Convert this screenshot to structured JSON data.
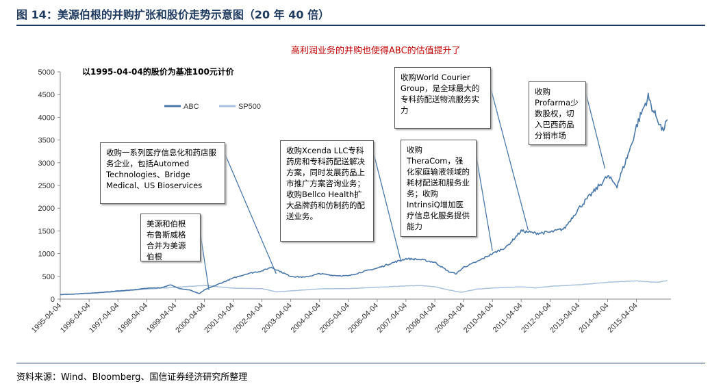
{
  "header": {
    "figure_title": "图 14：美源伯根的并购扩张和股价走势示意图（20 年 40 倍）",
    "subtitle": "高利润业务的并购也使得ABC的估值提升了",
    "source": "资料来源：Wind、Bloomberg、国信证券经济研究所整理"
  },
  "chart_data": {
    "type": "line",
    "note": "以1995-04-04的股价为基准100元计价",
    "x_labels": [
      "1995-04-04",
      "1996-04-04",
      "1997-04-04",
      "1998-04-04",
      "1999-04-04",
      "2000-04-04",
      "2001-04-04",
      "2002-04-04",
      "2003-04-04",
      "2004-04-04",
      "2005-04-04",
      "2006-04-04",
      "2007-04-04",
      "2008-04-04",
      "2009-04-04",
      "2010-04-04",
      "2011-04-04",
      "2012-04-04",
      "2013-04-04",
      "2014-04-04",
      "2015-04-04"
    ],
    "ylim": [
      0,
      5000
    ],
    "y_ticks": [
      0,
      500,
      1000,
      1500,
      2000,
      2500,
      3000,
      3500,
      4000,
      4500,
      5000
    ],
    "series": [
      {
        "name": "ABC",
        "color": "#4a78a8",
        "points": [
          [
            "1995-04-04",
            100
          ],
          [
            "1995-10-01",
            110
          ],
          [
            "1996-04-04",
            130
          ],
          [
            "1996-10-01",
            150
          ],
          [
            "1997-04-04",
            180
          ],
          [
            "1997-10-01",
            200
          ],
          [
            "1998-04-04",
            240
          ],
          [
            "1998-10-01",
            250
          ],
          [
            "1999-02-01",
            310
          ],
          [
            "1999-06-01",
            230
          ],
          [
            "1999-10-01",
            200
          ],
          [
            "2000-02-01",
            120
          ],
          [
            "2000-04-04",
            200
          ],
          [
            "2000-10-01",
            330
          ],
          [
            "2001-04-04",
            460
          ],
          [
            "2001-10-01",
            560
          ],
          [
            "2002-04-04",
            620
          ],
          [
            "2002-08-01",
            700
          ],
          [
            "2002-12-01",
            600
          ],
          [
            "2003-04-04",
            500
          ],
          [
            "2003-10-01",
            480
          ],
          [
            "2004-04-04",
            560
          ],
          [
            "2004-10-01",
            520
          ],
          [
            "2005-04-04",
            510
          ],
          [
            "2005-10-01",
            600
          ],
          [
            "2006-04-04",
            680
          ],
          [
            "2006-10-01",
            790
          ],
          [
            "2007-04-04",
            890
          ],
          [
            "2007-10-01",
            870
          ],
          [
            "2008-04-04",
            810
          ],
          [
            "2008-10-01",
            600
          ],
          [
            "2009-01-01",
            560
          ],
          [
            "2009-04-04",
            700
          ],
          [
            "2009-10-01",
            830
          ],
          [
            "2010-04-04",
            1000
          ],
          [
            "2010-10-01",
            1150
          ],
          [
            "2011-04-04",
            1500
          ],
          [
            "2011-10-01",
            1450
          ],
          [
            "2012-04-04",
            1470
          ],
          [
            "2012-10-01",
            1550
          ],
          [
            "2013-04-04",
            2000
          ],
          [
            "2013-10-01",
            2350
          ],
          [
            "2014-04-04",
            2700
          ],
          [
            "2014-08-01",
            2500
          ],
          [
            "2014-10-01",
            2800
          ],
          [
            "2015-02-01",
            3400
          ],
          [
            "2015-04-04",
            3800
          ],
          [
            "2015-07-01",
            4200
          ],
          [
            "2015-09-01",
            4450
          ],
          [
            "2015-11-01",
            4150
          ],
          [
            "2016-01-01",
            3950
          ],
          [
            "2016-03-01",
            3700
          ],
          [
            "2016-05-01",
            3950
          ]
        ]
      },
      {
        "name": "SP500",
        "color": "#a9c1dc",
        "points": [
          [
            "1995-04-04",
            100
          ],
          [
            "1996-04-04",
            125
          ],
          [
            "1997-04-04",
            165
          ],
          [
            "1998-04-04",
            220
          ],
          [
            "1999-04-04",
            260
          ],
          [
            "2000-04-04",
            300
          ],
          [
            "2001-04-04",
            240
          ],
          [
            "2002-04-04",
            230
          ],
          [
            "2002-10-01",
            160
          ],
          [
            "2003-04-04",
            180
          ],
          [
            "2004-04-04",
            225
          ],
          [
            "2005-04-04",
            230
          ],
          [
            "2006-04-04",
            260
          ],
          [
            "2007-04-04",
            290
          ],
          [
            "2007-10-01",
            300
          ],
          [
            "2008-04-04",
            270
          ],
          [
            "2008-10-01",
            200
          ],
          [
            "2009-03-01",
            150
          ],
          [
            "2009-10-01",
            220
          ],
          [
            "2010-04-04",
            245
          ],
          [
            "2011-04-04",
            270
          ],
          [
            "2011-10-01",
            245
          ],
          [
            "2012-04-04",
            280
          ],
          [
            "2013-04-04",
            315
          ],
          [
            "2014-04-04",
            370
          ],
          [
            "2015-04-04",
            400
          ],
          [
            "2015-09-01",
            380
          ],
          [
            "2016-01-01",
            370
          ],
          [
            "2016-05-01",
            410
          ]
        ]
      }
    ],
    "annotations": [
      {
        "text": "美源和伯根\n布鲁斯威格\n合并为美源\n伯根"
      },
      {
        "text": "收购一系列医疗信息化和药店服务企业，包括Automed Technologies、Bridge Medical、US Bioservices"
      },
      {
        "text": "收购Xcenda LLC专科药房和专科药配送解决方案，同时发展药品上市推广方案咨询业务；收购Bellco Health扩大品牌药和仿制药的配送业务。"
      },
      {
        "text": "收购\nTheraCom，强化家庭输液领域的耗材配送和服务业务；收购IntrinsiQ增加医疗信息化服务提供能力"
      },
      {
        "text": "收购World Courier Group，是全球最大的专科药配送物流服务实力"
      },
      {
        "text": "收购Profarma少数股权，切入巴西药品分销市场"
      }
    ]
  }
}
